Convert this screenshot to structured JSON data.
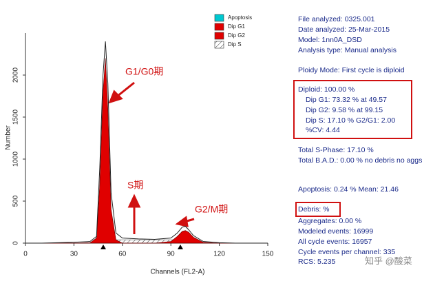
{
  "chart_data": {
    "type": "area",
    "x_label": "Channels (FL2-A)",
    "y_label": "Number",
    "x": [
      0,
      10,
      20,
      30,
      40,
      44,
      46,
      48,
      49.5,
      51,
      53,
      56,
      60,
      70,
      80,
      90,
      94,
      97,
      99,
      101,
      104,
      110,
      120,
      130,
      150
    ],
    "series": [
      {
        "name": "Apoptosis",
        "color": "#00c8d0",
        "values": [
          0,
          0,
          0,
          0,
          0,
          0,
          0,
          0,
          0,
          0,
          0,
          0,
          0,
          0,
          0,
          0,
          0,
          0,
          0,
          0,
          0,
          0,
          0,
          0,
          0
        ]
      },
      {
        "name": "Dip G1",
        "color": "#e00000",
        "values": [
          0,
          0,
          0,
          0,
          5,
          60,
          700,
          1800,
          2200,
          1600,
          400,
          40,
          0,
          0,
          0,
          0,
          0,
          0,
          0,
          0,
          0,
          0,
          0,
          0,
          0
        ]
      },
      {
        "name": "Dip G2",
        "color": "#e00000",
        "values": [
          0,
          0,
          0,
          0,
          0,
          0,
          0,
          0,
          0,
          0,
          0,
          0,
          0,
          0,
          0,
          20,
          80,
          140,
          150,
          130,
          70,
          10,
          0,
          0,
          0
        ]
      },
      {
        "name": "Dip S",
        "color": "#333333",
        "hatch": true,
        "values": [
          0,
          0,
          0,
          0,
          0,
          0,
          0,
          10,
          20,
          30,
          35,
          40,
          40,
          40,
          40,
          40,
          40,
          35,
          30,
          20,
          10,
          0,
          0,
          0,
          0
        ]
      }
    ],
    "histogram": {
      "color": "#222222",
      "values": [
        0,
        0,
        5,
        10,
        20,
        80,
        900,
        2000,
        2400,
        1900,
        600,
        120,
        60,
        50,
        45,
        60,
        120,
        190,
        200,
        160,
        90,
        20,
        5,
        0,
        0
      ]
    },
    "xlim": [
      0,
      150
    ],
    "xticks": [
      0,
      30,
      60,
      90,
      120,
      150
    ],
    "ylim": [
      0,
      2500
    ],
    "yticks": [
      0,
      500,
      1000,
      1500,
      2000
    ],
    "annotations": [
      "G1/G0期",
      "S期",
      "G2/M期"
    ]
  },
  "report": {
    "lines": [
      "File analyzed: 0325.001",
      "Date analyzed: 25-Mar-2015",
      "Model: 1nn0A_DSD",
      "Analysis type: Manual analysis",
      "Ploidy Mode: First cycle is diploid",
      "Diploid: 100.00 %",
      "Dip G1: 73.32 % at 49.57",
      "Dip G2: 9.58 % at 99.15",
      "Dip S: 17.10 %    G2/G1: 2.00",
      "%CV: 4.44",
      "Total S-Phase: 17.10 %",
      "Total B.A.D.: 0.00 %    no debris no aggs",
      "Apoptosis: 0.24 %    Mean: 21.46",
      "Debris:  %",
      "Aggregates: 0.00 %",
      "Modeled events: 16999",
      "All cycle events: 16957",
      "Cycle events per channel: 335",
      "RCS: 5.235"
    ]
  },
  "watermark": "知乎 @酸菜"
}
